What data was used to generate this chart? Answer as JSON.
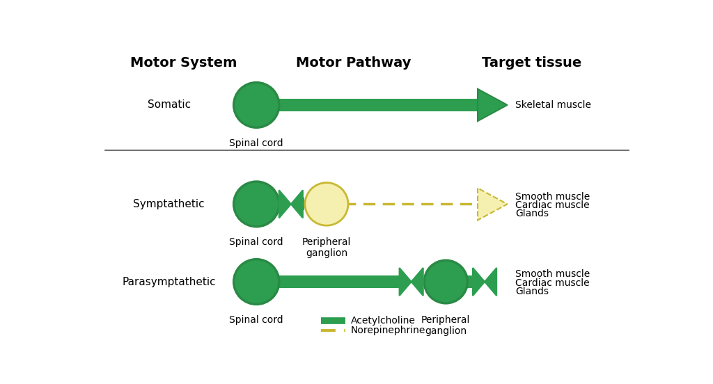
{
  "bg_color": "#ffffff",
  "green": "#2a8a45",
  "green_fill": "#2d9e50",
  "yellow": "#f5f0b0",
  "yellow_border": "#c8b832",
  "title_motor_system": "Motor System",
  "title_motor_pathway": "Motor Pathway",
  "title_target_tissue": "Target tissue",
  "legend_acetylcholine": "Acetylcholine",
  "legend_norepinephrine": "Norepinephrine",
  "font_size_header": 14,
  "font_size_label": 11,
  "font_size_sublabel": 10
}
